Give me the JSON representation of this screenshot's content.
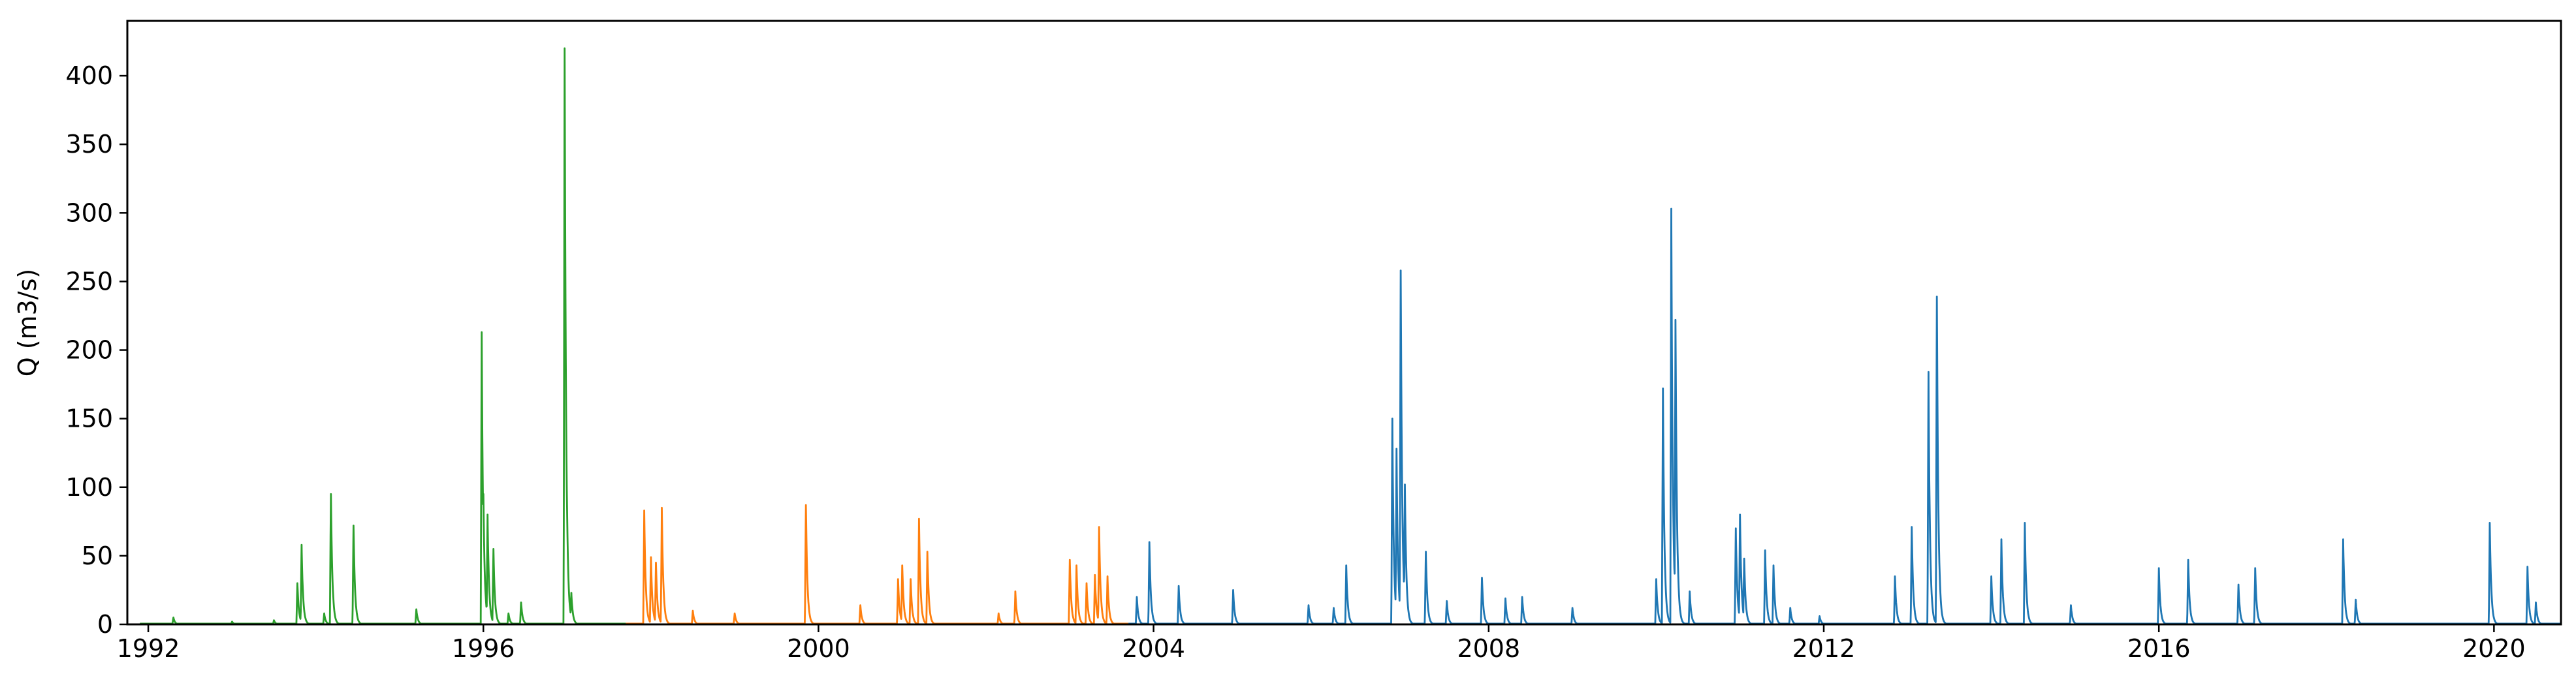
{
  "chart_data": {
    "type": "line",
    "title": "",
    "xlabel": "",
    "ylabel": "Q (m3/s)",
    "xlim": [
      1991.75,
      2020.8
    ],
    "ylim": [
      0,
      440
    ],
    "x_ticks": [
      1992,
      1996,
      2000,
      2004,
      2008,
      2012,
      2016,
      2020
    ],
    "x_tick_labels": [
      "1992",
      "1996",
      "2000",
      "2004",
      "2008",
      "2012",
      "2016",
      "2020"
    ],
    "y_ticks": [
      0,
      50,
      100,
      150,
      200,
      250,
      300,
      350,
      400
    ],
    "y_tick_labels": [
      "0",
      "50",
      "100",
      "150",
      "200",
      "250",
      "300",
      "350",
      "400"
    ],
    "grid": false,
    "legend": "none",
    "series": [
      {
        "color": "#2ca02c",
        "x_range": [
          1991.9,
          1997.7
        ],
        "peaks": [
          {
            "x": 1992.3,
            "y": 5
          },
          {
            "x": 1993.0,
            "y": 2
          },
          {
            "x": 1993.5,
            "y": 3
          },
          {
            "x": 1993.78,
            "y": 30
          },
          {
            "x": 1993.83,
            "y": 58
          },
          {
            "x": 1994.1,
            "y": 8
          },
          {
            "x": 1994.18,
            "y": 95
          },
          {
            "x": 1994.45,
            "y": 72
          },
          {
            "x": 1995.2,
            "y": 11
          },
          {
            "x": 1995.98,
            "y": 213
          },
          {
            "x": 1996.0,
            "y": 95
          },
          {
            "x": 1996.05,
            "y": 80
          },
          {
            "x": 1996.12,
            "y": 55
          },
          {
            "x": 1996.3,
            "y": 8
          },
          {
            "x": 1996.45,
            "y": 16
          },
          {
            "x": 1996.97,
            "y": 420
          },
          {
            "x": 1997.05,
            "y": 23
          }
        ]
      },
      {
        "color": "#ff7f0e",
        "x_range": [
          1997.7,
          2003.7
        ],
        "peaks": [
          {
            "x": 1997.92,
            "y": 83
          },
          {
            "x": 1998.0,
            "y": 49
          },
          {
            "x": 1998.06,
            "y": 45
          },
          {
            "x": 1998.13,
            "y": 85
          },
          {
            "x": 1998.5,
            "y": 10
          },
          {
            "x": 1999.0,
            "y": 8
          },
          {
            "x": 1999.85,
            "y": 87
          },
          {
            "x": 2000.5,
            "y": 14
          },
          {
            "x": 2000.95,
            "y": 33
          },
          {
            "x": 2001.0,
            "y": 43
          },
          {
            "x": 2001.1,
            "y": 33
          },
          {
            "x": 2001.2,
            "y": 77
          },
          {
            "x": 2001.3,
            "y": 53
          },
          {
            "x": 2002.15,
            "y": 8
          },
          {
            "x": 2002.35,
            "y": 24
          },
          {
            "x": 2003.0,
            "y": 47
          },
          {
            "x": 2003.08,
            "y": 43
          },
          {
            "x": 2003.2,
            "y": 30
          },
          {
            "x": 2003.3,
            "y": 36
          },
          {
            "x": 2003.35,
            "y": 71
          },
          {
            "x": 2003.45,
            "y": 35
          }
        ]
      },
      {
        "color": "#1f77b4",
        "x_range": [
          2003.7,
          2020.8
        ],
        "peaks": [
          {
            "x": 2003.8,
            "y": 20
          },
          {
            "x": 2003.95,
            "y": 60
          },
          {
            "x": 2004.3,
            "y": 28
          },
          {
            "x": 2004.95,
            "y": 25
          },
          {
            "x": 2005.85,
            "y": 14
          },
          {
            "x": 2006.15,
            "y": 12
          },
          {
            "x": 2006.3,
            "y": 43
          },
          {
            "x": 2006.85,
            "y": 150
          },
          {
            "x": 2006.9,
            "y": 128
          },
          {
            "x": 2006.95,
            "y": 258
          },
          {
            "x": 2007.0,
            "y": 102
          },
          {
            "x": 2007.25,
            "y": 53
          },
          {
            "x": 2007.5,
            "y": 17
          },
          {
            "x": 2007.92,
            "y": 34
          },
          {
            "x": 2008.2,
            "y": 19
          },
          {
            "x": 2008.4,
            "y": 20
          },
          {
            "x": 2009.0,
            "y": 12
          },
          {
            "x": 2010.0,
            "y": 33
          },
          {
            "x": 2010.08,
            "y": 172
          },
          {
            "x": 2010.18,
            "y": 303
          },
          {
            "x": 2010.23,
            "y": 222
          },
          {
            "x": 2010.4,
            "y": 24
          },
          {
            "x": 2010.95,
            "y": 70
          },
          {
            "x": 2011.0,
            "y": 80
          },
          {
            "x": 2011.05,
            "y": 48
          },
          {
            "x": 2011.3,
            "y": 54
          },
          {
            "x": 2011.4,
            "y": 43
          },
          {
            "x": 2011.6,
            "y": 12
          },
          {
            "x": 2011.95,
            "y": 6
          },
          {
            "x": 2012.85,
            "y": 35
          },
          {
            "x": 2013.05,
            "y": 71
          },
          {
            "x": 2013.25,
            "y": 184
          },
          {
            "x": 2013.35,
            "y": 239
          },
          {
            "x": 2014.0,
            "y": 35
          },
          {
            "x": 2014.12,
            "y": 62
          },
          {
            "x": 2014.4,
            "y": 74
          },
          {
            "x": 2014.95,
            "y": 14
          },
          {
            "x": 2016.0,
            "y": 41
          },
          {
            "x": 2016.35,
            "y": 47
          },
          {
            "x": 2016.95,
            "y": 29
          },
          {
            "x": 2017.15,
            "y": 41
          },
          {
            "x": 2018.2,
            "y": 62
          },
          {
            "x": 2018.35,
            "y": 18
          },
          {
            "x": 2019.95,
            "y": 74
          },
          {
            "x": 2020.4,
            "y": 42
          },
          {
            "x": 2020.5,
            "y": 16
          }
        ]
      }
    ]
  }
}
